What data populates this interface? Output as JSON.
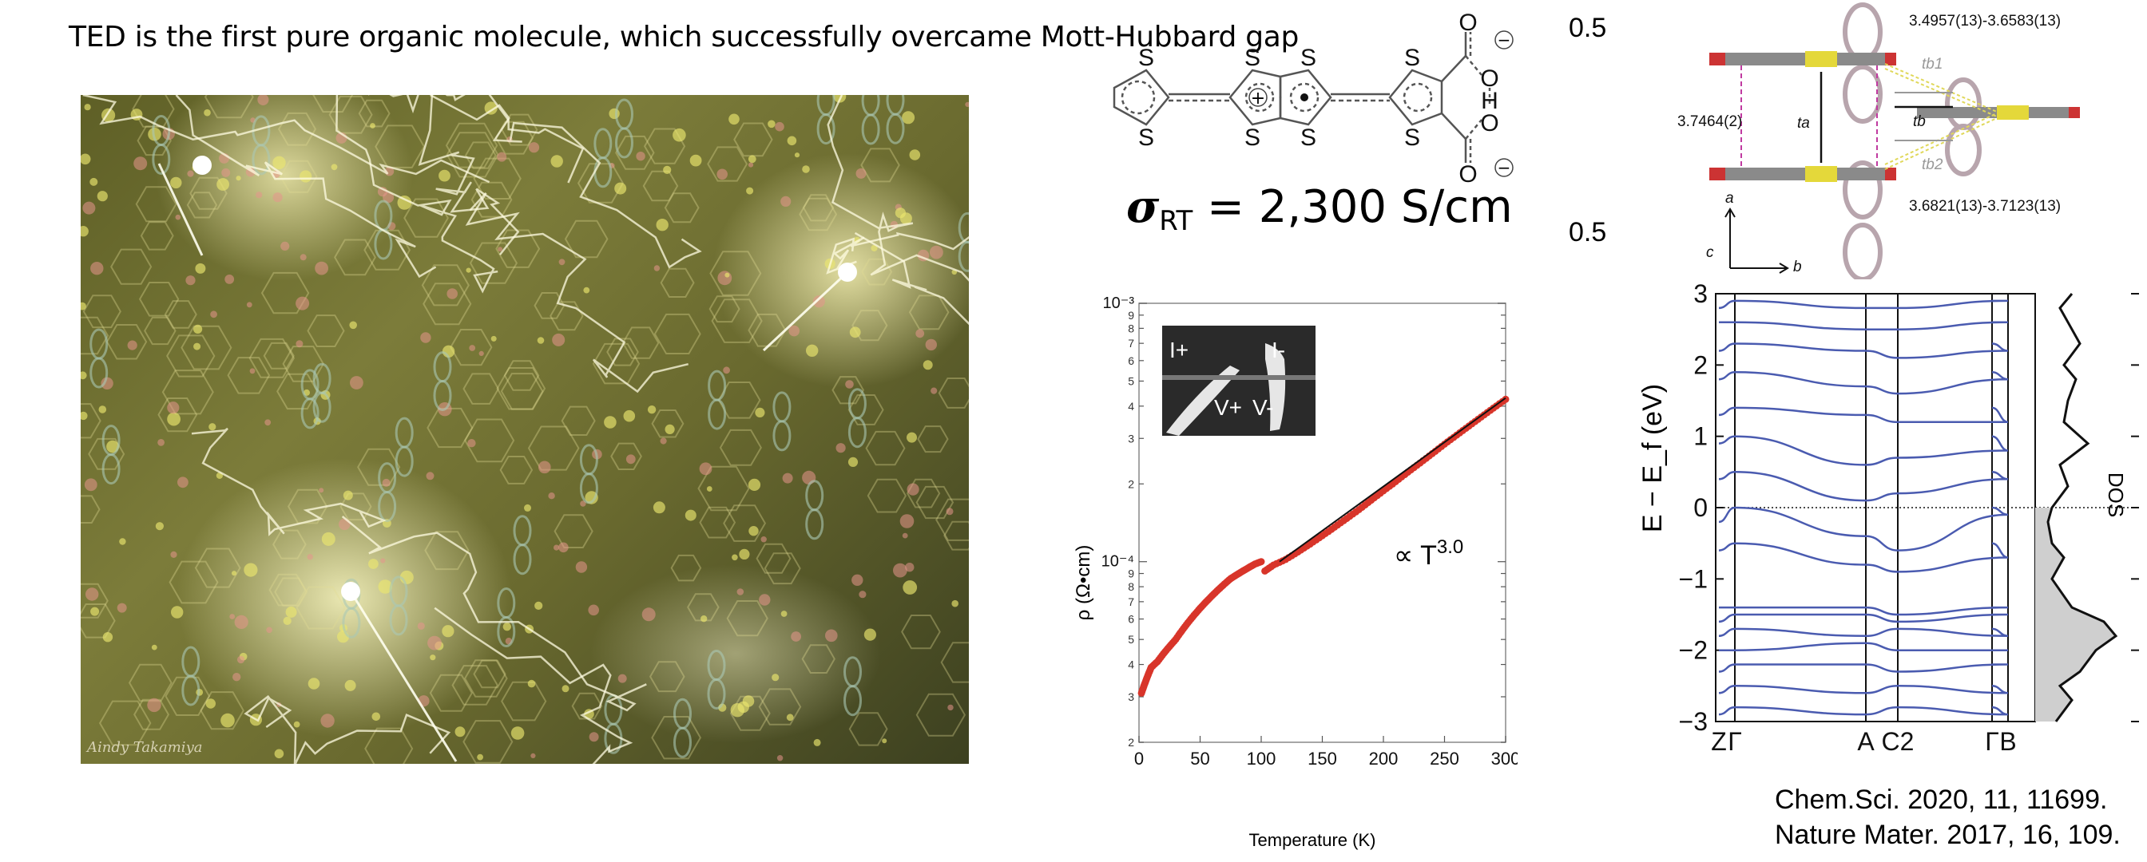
{
  "headline": "TED is the first pure organic molecule, which successfully overcame Mott-Hubbard gap",
  "art": {
    "signature": "Aindy Takamiya",
    "glow_color": "#fffbd0",
    "bg_color": "#6e6e30"
  },
  "molecule": {
    "atom_S": "S",
    "atom_O": "O",
    "atom_H": "H",
    "charge_plus": "+",
    "charge_minus": "−",
    "occupancy_top": "0.5",
    "occupancy_bottom": "0.5",
    "conductivity": {
      "symbol": "σ",
      "subscript": "RT",
      "value_text": " = 2,300 S/cm"
    }
  },
  "crystal": {
    "label_top": "3.4957(13)-3.6583(13)",
    "label_left": "3.7464(2)",
    "label_bottom": "3.6821(13)-3.7123(13)",
    "label_ta": "ta",
    "label_tb": "tb",
    "label_tb1": "tb1",
    "label_tb2": "tb2",
    "axis_a": "a",
    "axis_b": "b",
    "axis_c": "c"
  },
  "resistivity_chart": {
    "ylabel": "ρ (Ω•cm)",
    "xlabel": "Temperature (K)",
    "annotation": "∝ T",
    "annotation_exp": "3.0",
    "inset": {
      "i_plus": "I+",
      "i_minus": "I-",
      "v_plus": "V+",
      "v_minus": "V-"
    },
    "y_major_ticks": [
      "10⁻³",
      "10⁻⁴"
    ],
    "x_ticks": [
      "0",
      "50",
      "100",
      "150",
      "200",
      "250",
      "300"
    ]
  },
  "band_chart": {
    "ylabel": "E − E_f (eV)",
    "dos_label": "DOS",
    "y_ticks": [
      "3",
      "2",
      "1",
      "0",
      "−1",
      "−2",
      "−3"
    ],
    "k_labels": [
      "Z",
      "Γ",
      "A",
      "C2",
      "B",
      "Γ"
    ]
  },
  "references": [
    "Chem.Sci. 2020, 11, 11699.",
    "Nature Mater. 2017, 16, 109."
  ],
  "chart_data": [
    {
      "type": "scatter",
      "title": "",
      "xlabel": "Temperature (K)",
      "ylabel": "ρ (Ω•cm)",
      "xlim": [
        0,
        300
      ],
      "ylim": [
        2e-05,
        0.001
      ],
      "y_scale": "log",
      "series": [
        {
          "name": "",
          "x": [
            2,
            4,
            6,
            8,
            10,
            15,
            20,
            25,
            30,
            35,
            40,
            45,
            50,
            55,
            60,
            65,
            70,
            75,
            80,
            85,
            90,
            95,
            100
          ],
          "y": [
            3.1e-05,
            3.3e-05,
            3.5e-05,
            3.7e-05,
            3.9e-05,
            4.1e-05,
            4.4e-05,
            4.7e-05,
            5e-05,
            5.4e-05,
            5.8e-05,
            6.2e-05,
            6.6e-05,
            7e-05,
            7.4e-05,
            7.8e-05,
            8.2e-05,
            8.6e-05,
            8.9e-05,
            9.2e-05,
            9.5e-05,
            9.8e-05,
            0.0001
          ]
        },
        {
          "name": "",
          "x": [
            103,
            110,
            120,
            130,
            140,
            150,
            160,
            170,
            180,
            190,
            200,
            210,
            220,
            230,
            240,
            250,
            260,
            270,
            280,
            290,
            300
          ],
          "y": [
            9.2e-05,
            9.7e-05,
            0.000102,
            0.000109,
            0.000117,
            0.000126,
            0.000136,
            0.000147,
            0.000159,
            0.000173,
            0.000188,
            0.000204,
            0.000222,
            0.000241,
            0.000262,
            0.000285,
            0.000309,
            0.000335,
            0.000363,
            0.000393,
            0.000425
          ]
        }
      ],
      "fit": {
        "x": [
          115,
          300
        ],
        "y": [
          0.0001,
          0.00043
        ]
      },
      "grid": false,
      "legend": "none"
    },
    {
      "type": "line",
      "title": "",
      "xlabel": "",
      "ylabel": "E − E_f (eV)",
      "ylim": [
        -3,
        3
      ],
      "k_points": [
        "Z",
        "Γ",
        "A",
        "C2",
        "B",
        "Γ"
      ],
      "band_energies_at_k": {
        "Z": [
          -2.9,
          -2.6,
          -2.3,
          -2.0,
          -1.8,
          -1.6,
          -1.4,
          -0.6,
          -0.2,
          0.4,
          0.9,
          1.3,
          1.8,
          2.2,
          2.6,
          2.8
        ],
        "Γ": [
          -2.8,
          -2.5,
          -2.2,
          -2.0,
          -1.7,
          -1.5,
          -1.4,
          -0.5,
          0.0,
          0.5,
          1.0,
          1.4,
          1.9,
          2.3,
          2.6,
          2.9
        ],
        "A": [
          -2.9,
          -2.6,
          -2.2,
          -1.9,
          -1.8,
          -1.5,
          -1.4,
          -0.8,
          -0.4,
          0.1,
          0.6,
          1.3,
          1.7,
          2.2,
          2.5,
          2.8
        ],
        "C2": [
          -2.8,
          -2.5,
          -2.3,
          -2.0,
          -1.7,
          -1.6,
          -1.5,
          -0.9,
          -0.6,
          0.2,
          0.7,
          1.2,
          1.6,
          2.1,
          2.5,
          2.8
        ],
        "B": [
          -2.9,
          -2.6,
          -2.2,
          -2.0,
          -1.8,
          -1.5,
          -1.4,
          -0.7,
          -0.1,
          0.4,
          0.8,
          1.2,
          1.8,
          2.2,
          2.6,
          2.9
        ],
        "Γ2": [
          -2.8,
          -2.5,
          -2.2,
          -2.0,
          -1.7,
          -1.5,
          -1.4,
          -0.5,
          0.0,
          0.5,
          1.0,
          1.4,
          1.9,
          2.3,
          2.6,
          2.9
        ]
      },
      "band_color": "#4a5bb0",
      "dos": {
        "energy": [
          -3.0,
          -2.7,
          -2.5,
          -2.3,
          -2.0,
          -1.8,
          -1.6,
          -1.4,
          -1.0,
          -0.7,
          -0.5,
          -0.2,
          0.0,
          0.3,
          0.6,
          0.9,
          1.2,
          1.5,
          1.8,
          2.0,
          2.3,
          2.6,
          2.8,
          3.0
        ],
        "density": [
          0.2,
          0.4,
          0.25,
          0.5,
          0.7,
          0.95,
          0.8,
          0.4,
          0.15,
          0.3,
          0.15,
          0.1,
          0.15,
          0.35,
          0.25,
          0.6,
          0.3,
          0.35,
          0.45,
          0.3,
          0.5,
          0.35,
          0.25,
          0.4
        ]
      },
      "grid": false,
      "legend": "none"
    }
  ]
}
